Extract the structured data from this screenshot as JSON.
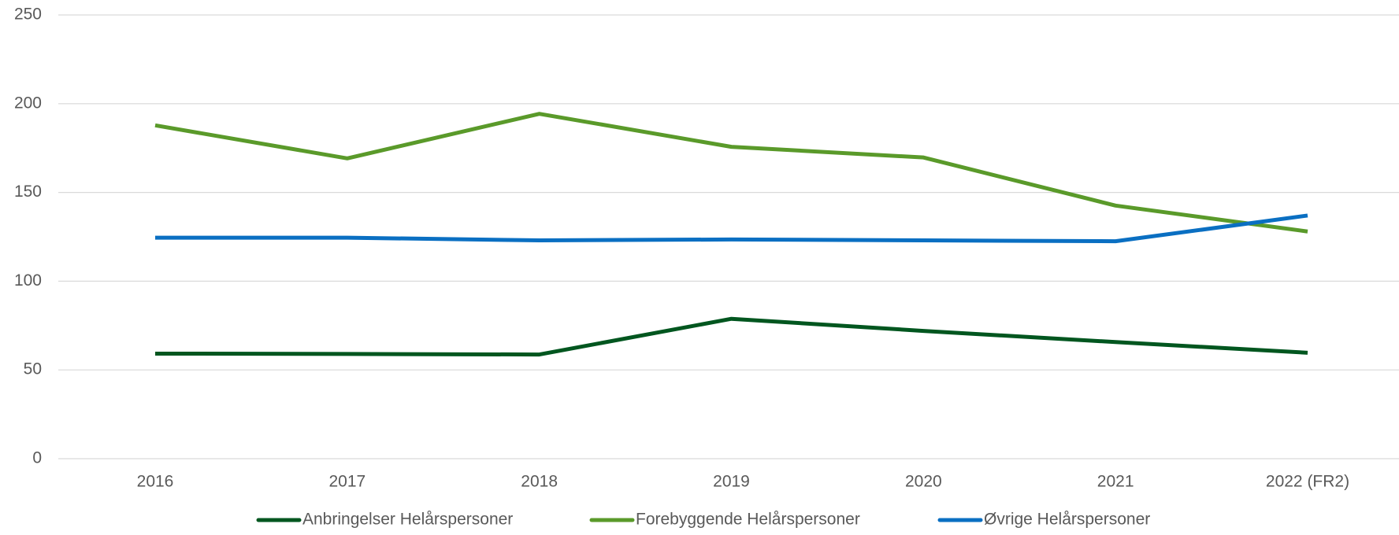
{
  "chart_data": {
    "type": "line",
    "categories": [
      "2016",
      "2017",
      "2018",
      "2019",
      "2020",
      "2021",
      "2022 (FR2)"
    ],
    "series": [
      {
        "name": "Anbringelser Helårspersoner",
        "color": "#00561f",
        "values": [
          59.2,
          59,
          58.7,
          78.8,
          72,
          65.7,
          59.7
        ]
      },
      {
        "name": "Forebyggende Helårspersoner",
        "color": "#5a9a2a",
        "values": [
          187.8,
          169.2,
          194.3,
          175.7,
          169.7,
          142.6,
          128
        ]
      },
      {
        "name": "Øvrige Helårspersoner",
        "color": "#0a6fc2",
        "values": [
          124.5,
          124.5,
          123,
          123.5,
          123,
          122.5,
          137
        ]
      }
    ],
    "ylim": [
      0,
      250
    ],
    "yticks": [
      0,
      50,
      100,
      150,
      200,
      250
    ],
    "grid": true,
    "legend": "bottom"
  }
}
